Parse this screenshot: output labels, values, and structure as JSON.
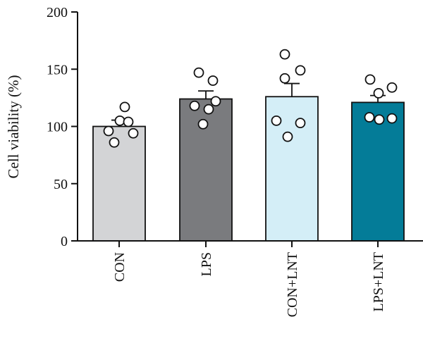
{
  "chart_data": {
    "type": "bar",
    "title": "",
    "xlabel": "",
    "ylabel": "Cell viability (%)",
    "ylim": [
      0,
      200
    ],
    "yticks": [
      0,
      50,
      100,
      150,
      200
    ],
    "grid": false,
    "legend": "none",
    "categories": [
      "CON",
      "LPS",
      "CON+LNT",
      "LPS+LNT"
    ],
    "series": [
      {
        "values": [
          100,
          124,
          126,
          121
        ],
        "errors": [
          5.5,
          7,
          11.5,
          6
        ],
        "colors": [
          "#d3d4d6",
          "#7a7b7e",
          "#d4eef7",
          "#047c98"
        ],
        "points": [
          [
            117,
            105,
            104,
            96,
            94,
            86
          ],
          [
            147,
            140,
            122,
            118,
            115,
            102
          ],
          [
            163,
            149,
            142,
            105,
            103,
            91
          ],
          [
            141,
            134,
            129,
            108,
            107,
            106
          ]
        ]
      }
    ]
  }
}
